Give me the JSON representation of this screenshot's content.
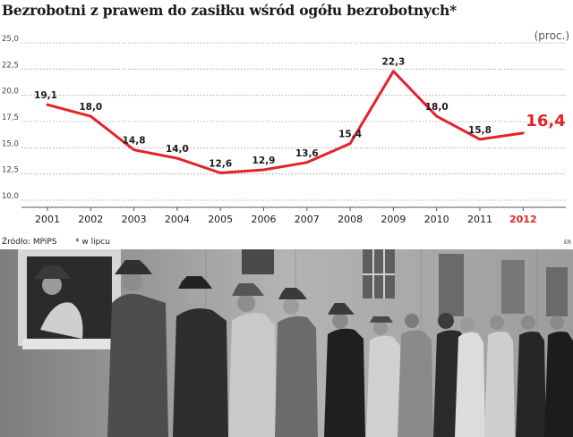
{
  "title": "Bezrobotni z prawem do zasiłku wśród ogółu bezrobotnych*",
  "unit": "(proc.)",
  "source": "Źródło: MPiPS",
  "footnote": "* w lipcu",
  "credit": "ER",
  "colors": {
    "line": "#e2232a",
    "grid": "#9a9a9a",
    "text": "#1a1a1a"
  },
  "chart_data": {
    "type": "line",
    "categories": [
      "2001",
      "2002",
      "2003",
      "2004",
      "2005",
      "2006",
      "2007",
      "2008",
      "2009",
      "2010",
      "2011",
      "2012"
    ],
    "series": [
      {
        "values": [
          19.1,
          18.0,
          14.8,
          14.0,
          12.6,
          12.9,
          13.6,
          15.4,
          22.3,
          18.0,
          15.8,
          16.4
        ]
      }
    ],
    "data_labels": [
      "19,1",
      "18,0",
      "14,8",
      "14,0",
      "12,6",
      "12,9",
      "13,6",
      "15,4",
      "22,3",
      "18,0",
      "15,8",
      "16,4"
    ],
    "yticks": [
      "25,0",
      "22,5",
      "20,0",
      "17,5",
      "15,0",
      "12,5",
      "10,0"
    ],
    "ytick_values": [
      25.0,
      22.5,
      20.0,
      17.5,
      15.0,
      12.5,
      10.0
    ],
    "ylim": [
      10.0,
      25.0
    ],
    "grid": true,
    "grid_style": "dotted-horizontal",
    "highlight_last": true
  },
  "photo": {
    "kind": "black-and-white photograph",
    "scene": "line of men in hats queuing at an office window"
  }
}
